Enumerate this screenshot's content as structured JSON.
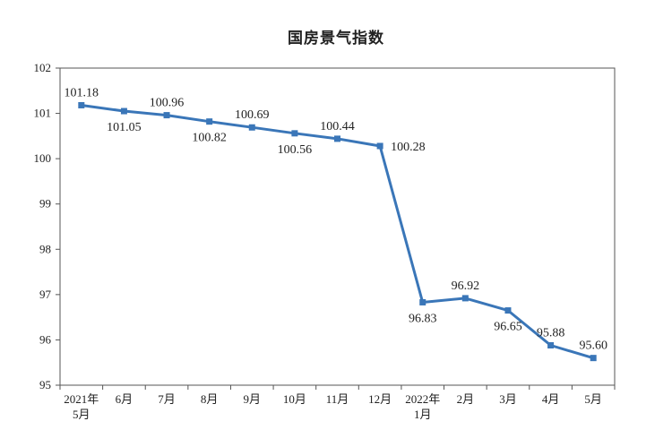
{
  "chart_data": {
    "type": "line",
    "title": "国房景气指数",
    "xlabel": "",
    "ylabel": "",
    "categories": [
      [
        "2021年",
        "5月"
      ],
      [
        "6月"
      ],
      [
        "7月"
      ],
      [
        "8月"
      ],
      [
        "9月"
      ],
      [
        "10月"
      ],
      [
        "11月"
      ],
      [
        "12月"
      ],
      [
        "2022年",
        "1月"
      ],
      [
        "2月"
      ],
      [
        "3月"
      ],
      [
        "4月"
      ],
      [
        "5月"
      ]
    ],
    "series": [
      {
        "values": [
          101.18,
          101.05,
          100.96,
          100.82,
          100.69,
          100.56,
          100.44,
          100.28,
          96.83,
          96.92,
          96.65,
          95.88,
          95.6
        ],
        "labels": [
          "101.18",
          "101.05",
          "100.96",
          "100.82",
          "100.69",
          "100.56",
          "100.44",
          "100.28",
          "96.83",
          "96.92",
          "96.65",
          "95.88",
          "95.60"
        ],
        "label_positions": [
          "above",
          "below",
          "above",
          "below",
          "above",
          "below",
          "above",
          "right",
          "below",
          "above",
          "below",
          "above",
          "above"
        ],
        "color": "#3a76b8"
      }
    ],
    "ylim": [
      95,
      102
    ],
    "yticks": [
      "95",
      "96",
      "97",
      "98",
      "99",
      "100",
      "101",
      "102"
    ],
    "grid": false,
    "legend": "none"
  }
}
